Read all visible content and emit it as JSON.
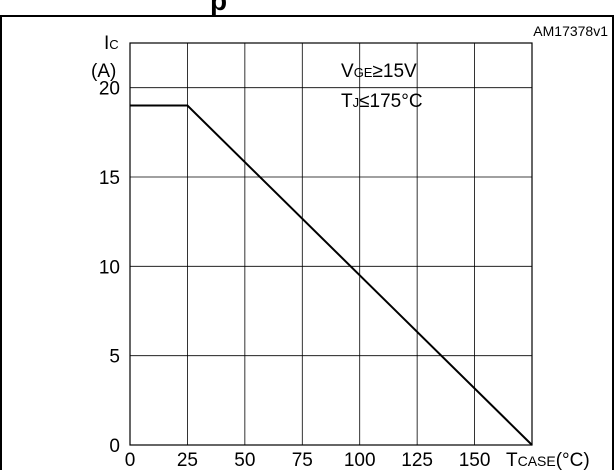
{
  "chart_data": {
    "type": "line",
    "title": "p",
    "figure_id": "AM17378v1",
    "y_axis": {
      "symbol": "I",
      "subscript": "C",
      "unit": "(A)",
      "ylim": [
        0,
        22.5
      ],
      "ticks": [
        0,
        5,
        10,
        15,
        20
      ]
    },
    "x_axis": {
      "symbol": "T",
      "subscript": "CASE",
      "unit": "(°C)",
      "xlim": [
        0,
        175
      ],
      "ticks": [
        0,
        25,
        50,
        75,
        100,
        125,
        150
      ]
    },
    "conditions": [
      {
        "symbol": "V",
        "subscript": "GE",
        "rest": "≥15V"
      },
      {
        "symbol": "T",
        "subscript": "J",
        "rest": "≤175°C"
      }
    ],
    "series": [
      {
        "x": [
          0,
          25,
          175
        ],
        "y": [
          19,
          19,
          0
        ]
      }
    ],
    "grid": true,
    "colors": {
      "line": "#000000",
      "grid": "#000000",
      "background": "#ffffff"
    }
  }
}
